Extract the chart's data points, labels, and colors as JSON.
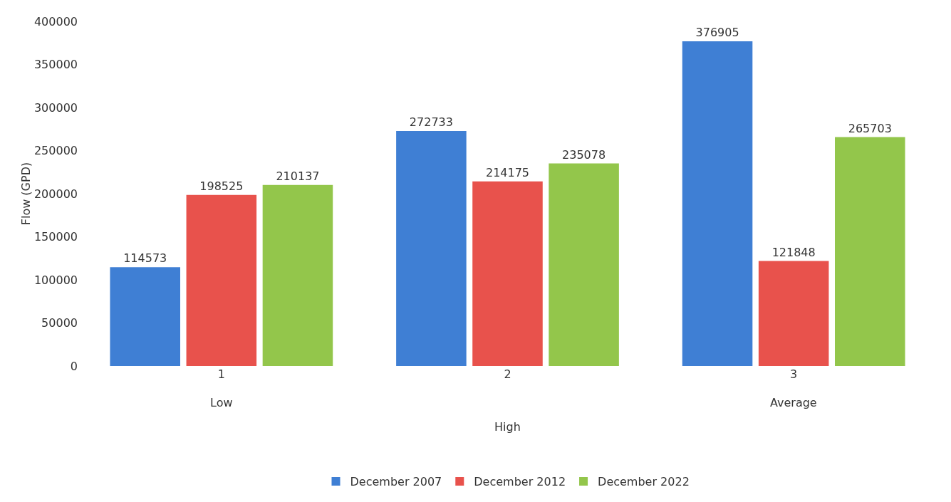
{
  "chart_data": {
    "type": "bar",
    "ylabel": "Flow (GPD)",
    "categories": [
      "1",
      "2",
      "3"
    ],
    "series": [
      {
        "name": "December 2007",
        "color": "#3f7fd4",
        "values": [
          114573,
          272733,
          376905
        ]
      },
      {
        "name": "December 2012",
        "color": "#e8524c",
        "values": [
          198525,
          214175,
          121848
        ]
      },
      {
        "name": "December 2022",
        "color": "#93c64b",
        "values": [
          210137,
          235078,
          265703
        ]
      }
    ],
    "annotations": [
      "Low",
      "High",
      "Average"
    ],
    "ylim": [
      0,
      400000
    ],
    "yticks": [
      0,
      50000,
      100000,
      150000,
      200000,
      250000,
      300000,
      350000,
      400000
    ],
    "data_labels": true,
    "grid": false,
    "legend": "bottom"
  }
}
